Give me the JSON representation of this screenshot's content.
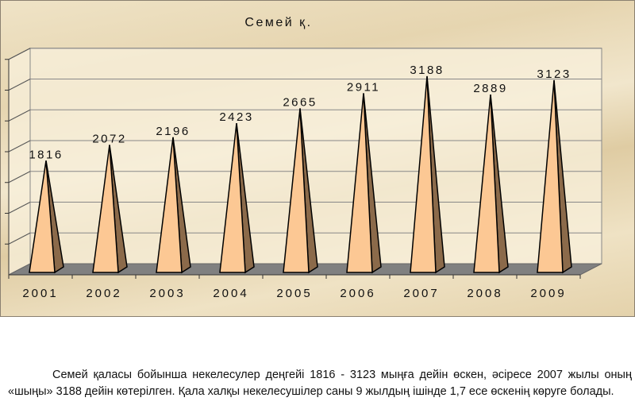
{
  "chart_data": {
    "type": "bar",
    "bar_shape": "3d-pyramid",
    "title": "Семей қ.",
    "categories": [
      "2001",
      "2002",
      "2003",
      "2004",
      "2005",
      "2006",
      "2007",
      "2008",
      "2009"
    ],
    "values": [
      1816,
      2072,
      2196,
      2423,
      2665,
      2911,
      3188,
      2889,
      3123
    ],
    "data_labels": [
      "1816",
      "2072",
      "2196",
      "2423",
      "2665",
      "2911",
      "3188",
      "2889",
      "3123"
    ],
    "ylim": [
      0,
      3500
    ],
    "y_gridline_step": 500,
    "y_tick_labels_shown": false,
    "grid": true,
    "legend": "none",
    "colors": {
      "front": "#fcc894",
      "side": "#8b6a4a",
      "floor": "#808080",
      "wall": "#f8f0dc"
    }
  },
  "caption": "Семей қаласы  бойынша некелесулер деңгейі 1816 - 3123 мыңға дейін өскен, әсіресе 2007 жылы оның «шыңы» 3188  дейін көтерілген. Қала халқы некелесушілер саны 9 жылдың ішінде 1,7 есе өскенің көруге болады."
}
